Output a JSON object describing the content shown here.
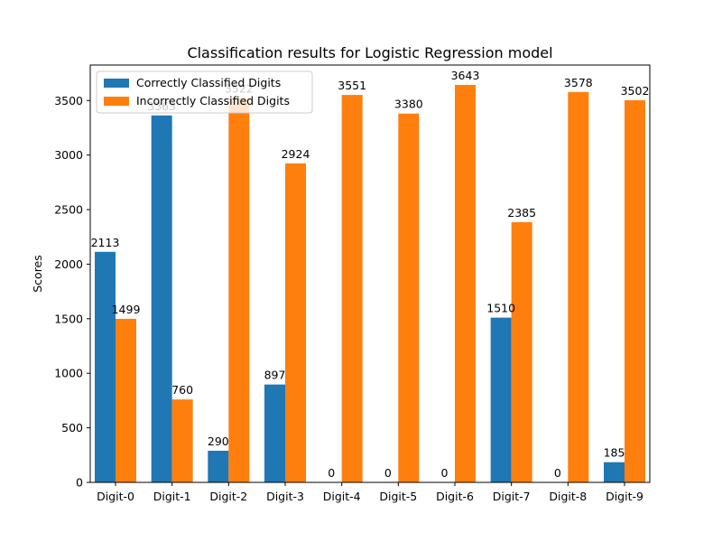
{
  "chart_data": {
    "type": "bar",
    "title": "Classification results for Logistic Regression model",
    "xlabel": "",
    "ylabel": "Scores",
    "categories": [
      "Digit-0",
      "Digit-1",
      "Digit-2",
      "Digit-3",
      "Digit-4",
      "Digit-5",
      "Digit-6",
      "Digit-7",
      "Digit-8",
      "Digit-9"
    ],
    "series": [
      {
        "name": "Correctly Classified Digits",
        "color": "#1f77b4",
        "values": [
          2113,
          3363,
          290,
          897,
          0,
          0,
          0,
          1510,
          0,
          185
        ]
      },
      {
        "name": "Incorrectly Classified Digits",
        "color": "#ff7f0e",
        "values": [
          1499,
          760,
          3522,
          2924,
          3551,
          3380,
          3643,
          2385,
          3578,
          3502
        ]
      }
    ],
    "ylim": [
      0,
      3825
    ],
    "yticks": [
      0,
      500,
      1000,
      1500,
      2000,
      2500,
      3000,
      3500
    ],
    "legend": "top-left",
    "grid": false
  }
}
